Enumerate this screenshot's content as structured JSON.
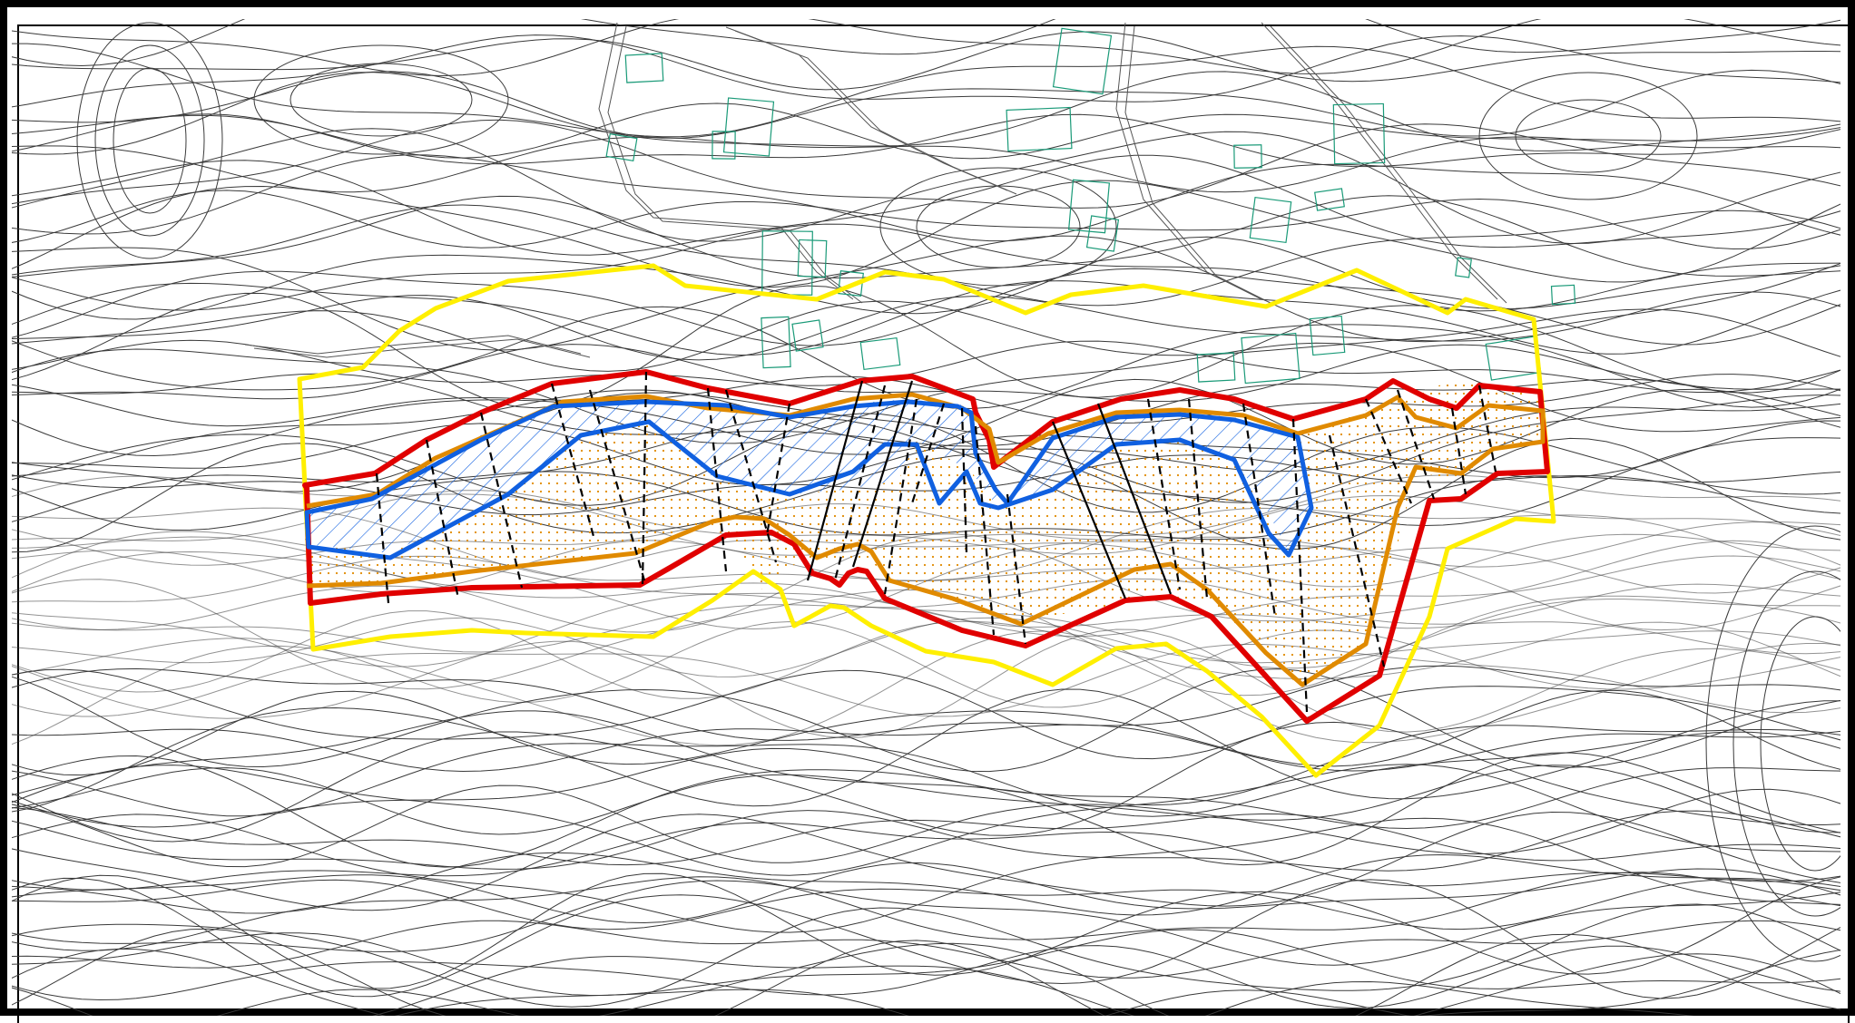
{
  "map": {
    "kind": "topographic-site-plan",
    "colors": {
      "background": "#ffffff",
      "frame": "#000000",
      "contours": "#3a3a3a",
      "buildings": "#1a9a78",
      "study_boundary": "#ffef00",
      "outer_limit": "#e00000",
      "intermediate_limit": "#e08a00",
      "inner_limit": "#1060e0",
      "hatch_blue": "#1060e0",
      "fill_orange_dots": "#e08a00",
      "section_lines": "#000000"
    },
    "legend": []
  }
}
